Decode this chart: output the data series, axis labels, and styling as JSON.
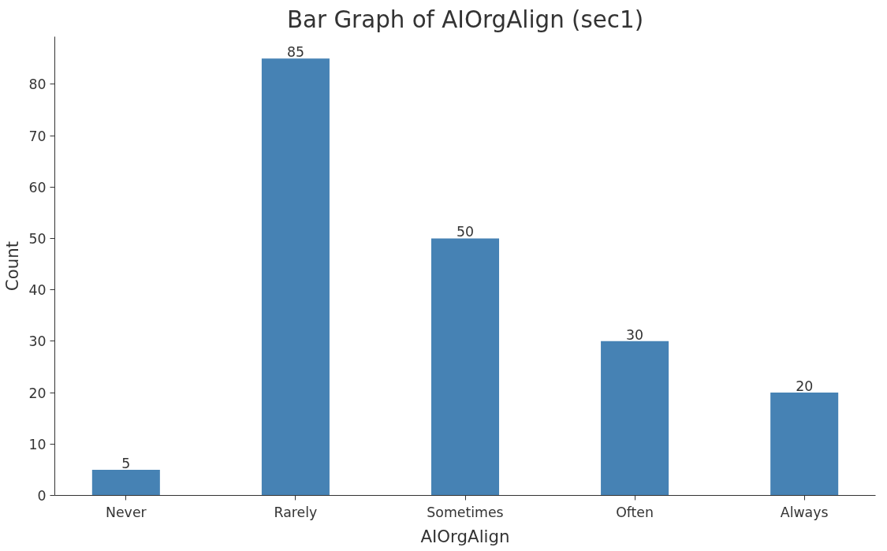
{
  "chart_data": {
    "type": "bar",
    "title": "Bar Graph of AIOrgAlign (sec1)",
    "xlabel": "AIOrgAlign",
    "ylabel": "Count",
    "categories": [
      "Never",
      "Rarely",
      "Sometimes",
      "Often",
      "Always"
    ],
    "values": [
      5,
      85,
      50,
      30,
      20
    ],
    "color": "#4682b4",
    "ylim": [
      0,
      89.25
    ],
    "yticks": [
      0,
      10,
      20,
      30,
      40,
      50,
      60,
      70,
      80
    ],
    "data_labels": true,
    "grid": false
  }
}
